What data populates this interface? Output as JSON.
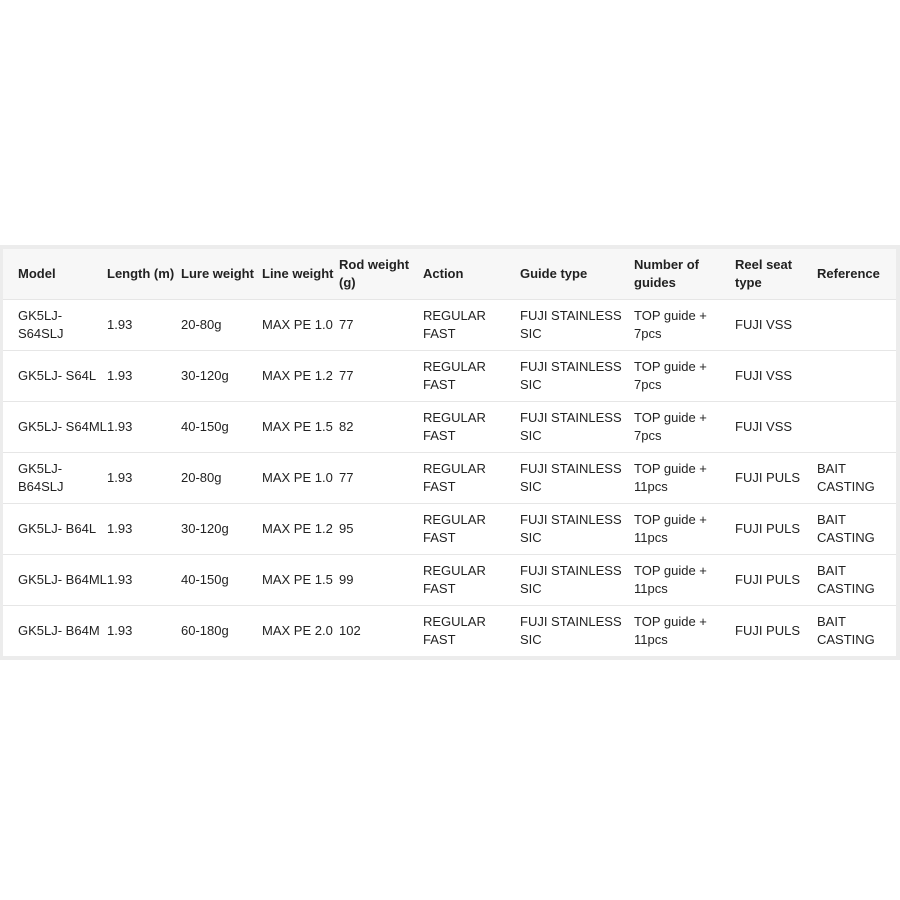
{
  "table": {
    "headers": [
      "Model",
      "Length (m)",
      "Lure weight",
      "Line weight",
      "Rod weight (g)",
      "Action",
      "Guide type",
      "Number of guides",
      "Reel seat type",
      "Reference"
    ],
    "rows": [
      [
        "GK5LJ- S64SLJ",
        "1.93",
        "20-80g",
        "MAX PE 1.0",
        "77",
        "REGULAR FAST",
        "FUJI STAINLESS SIC",
        "TOP guide + 7pcs",
        "FUJI VSS",
        ""
      ],
      [
        "GK5LJ- S64L",
        "1.93",
        "30-120g",
        "MAX PE 1.2",
        "77",
        "REGULAR FAST",
        "FUJI STAINLESS SIC",
        "TOP guide + 7pcs",
        "FUJI VSS",
        ""
      ],
      [
        "GK5LJ- S64ML",
        "1.93",
        "40-150g",
        "MAX PE 1.5",
        "82",
        "REGULAR FAST",
        "FUJI STAINLESS SIC",
        "TOP guide + 7pcs",
        "FUJI VSS",
        ""
      ],
      [
        "GK5LJ- B64SLJ",
        "1.93",
        "20-80g",
        "MAX PE 1.0",
        "77",
        "REGULAR FAST",
        "FUJI STAINLESS SIC",
        "TOP guide + 11pcs",
        "FUJI PULS",
        "BAIT CASTING"
      ],
      [
        "GK5LJ- B64L",
        "1.93",
        "30-120g",
        "MAX PE 1.2",
        "95",
        "REGULAR FAST",
        "FUJI STAINLESS SIC",
        "TOP guide + 11pcs",
        "FUJI PULS",
        "BAIT CASTING"
      ],
      [
        "GK5LJ- B64ML",
        "1.93",
        "40-150g",
        "MAX PE 1.5",
        "99",
        "REGULAR FAST",
        "FUJI STAINLESS SIC",
        "TOP guide + 11pcs",
        "FUJI PULS",
        "BAIT CASTING"
      ],
      [
        "GK5LJ- B64M",
        "1.93",
        "60-180g",
        "MAX PE 2.0",
        "102",
        "REGULAR FAST",
        "FUJI STAINLESS SIC",
        "TOP guide + 11pcs",
        "FUJI PULS",
        "BAIT CASTING"
      ]
    ]
  }
}
